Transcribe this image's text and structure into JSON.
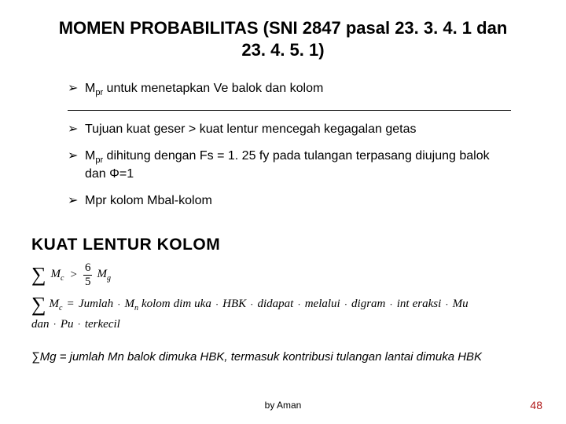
{
  "title": "MOMEN PROBABILITAS (SNI 2847 pasal 23. 3. 4. 1 dan 23. 4. 5. 1)",
  "bullets": {
    "arrow": "➢",
    "items": [
      {
        "pre": "M",
        "sub": "pr",
        "post": " untuk menetapkan Ve balok dan kolom"
      },
      {
        "text": "Tujuan kuat geser > kuat lentur mencegah kegagalan getas"
      },
      {
        "pre": "M",
        "sub": "pr",
        "post": " dihitung dengan Fs = 1. 25 fy pada tulangan terpasang diujung balok dan Φ=1"
      },
      {
        "text": "Mpr kolom Mbal-kolom"
      }
    ]
  },
  "section2": {
    "title": "KUAT LENTUR  KOLOM"
  },
  "formula": {
    "line1": {
      "sigma": "∑",
      "Mc_M": "M",
      "Mc_c": "c",
      "gt": ">",
      "fracN": "6",
      "fracD": "5",
      "Mg_M": "M",
      "Mg_g": "g"
    },
    "line2": {
      "sigma": "∑",
      "Mc_M": "M",
      "Mc_c": "c",
      "eq": "=",
      "w1": "Jumlah",
      "w2": "M",
      "w2s": "n",
      "w3": "kolom",
      "w4": "dim",
      "w5": "uka",
      "w6": "HBK",
      "w7": "didapat",
      "w8": "melalui",
      "w9": "digram",
      "w10": "int",
      "w11": "eraksi",
      "w12": "Mu",
      "dot": "·"
    },
    "line3": {
      "w1": "dan",
      "w2": "Pu",
      "w3": "terkecil",
      "dot": "·"
    }
  },
  "note": "∑Mg = jumlah Mn balok dimuka HBK, termasuk kontribusi tulangan lantai dimuka HBK",
  "footer": {
    "center": "by Aman",
    "page": "48"
  },
  "colors": {
    "page_number": "#b01818"
  }
}
